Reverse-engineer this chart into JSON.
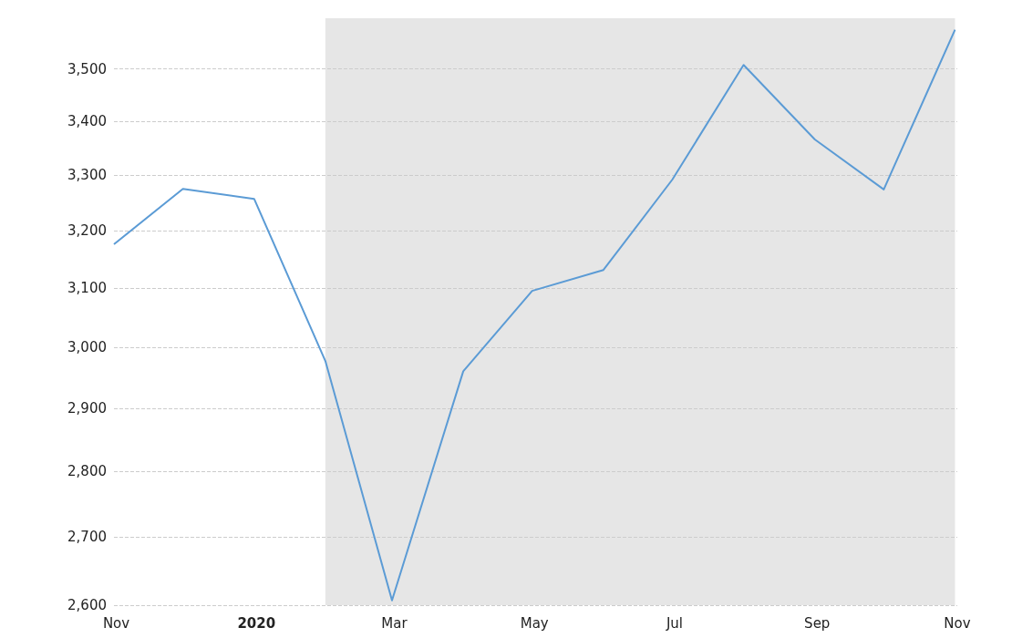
{
  "chart_data": {
    "type": "line",
    "x": [
      "2019-10-31",
      "2019-11-30",
      "2019-12-31",
      "2020-01-31",
      "2020-02-29",
      "2020-03-31",
      "2020-04-30",
      "2020-05-31",
      "2020-06-30",
      "2020-07-31",
      "2020-08-31",
      "2020-09-30",
      "2020-10-31"
    ],
    "series": [
      {
        "color": "#5b9bd5",
        "values": [
          3176,
          3275,
          3257,
          2977,
          2607,
          2960,
          3095,
          3131,
          3292,
          3508,
          3366,
          3274,
          3577
        ]
      }
    ],
    "xlim": [
      "2019-10-31",
      "2020-11-01"
    ],
    "xticks": [
      {
        "value": "2019-11-01",
        "label": "Nov"
      },
      {
        "value": "2020-01-01",
        "label": "2020"
      },
      {
        "value": "2020-03-01",
        "label": "Mar"
      },
      {
        "value": "2020-05-01",
        "label": "May"
      },
      {
        "value": "2020-07-01",
        "label": "Jul"
      },
      {
        "value": "2020-09-01",
        "label": "Sep"
      },
      {
        "value": "2020-11-01",
        "label": "Nov"
      }
    ],
    "ylim": [
      2600,
      3600
    ],
    "yticks": [
      {
        "value": 2600,
        "label": "2,600"
      },
      {
        "value": 2700,
        "label": "2,700"
      },
      {
        "value": 2800,
        "label": "2,800"
      },
      {
        "value": 2900,
        "label": "2,900"
      },
      {
        "value": 3000,
        "label": "3,000"
      },
      {
        "value": 3100,
        "label": "3,100"
      },
      {
        "value": 3200,
        "label": "3,200"
      },
      {
        "value": 3300,
        "label": "3,300"
      },
      {
        "value": 3400,
        "label": "3,400"
      },
      {
        "value": 3500,
        "label": "3,500"
      }
    ],
    "log": "y",
    "grid": "y",
    "marker": "none",
    "line_style": "solid",
    "bands": [
      {
        "axis": "x",
        "from": "2020-01-31",
        "to": "2020-10-31",
        "color": "#e6e6e6"
      }
    ]
  }
}
